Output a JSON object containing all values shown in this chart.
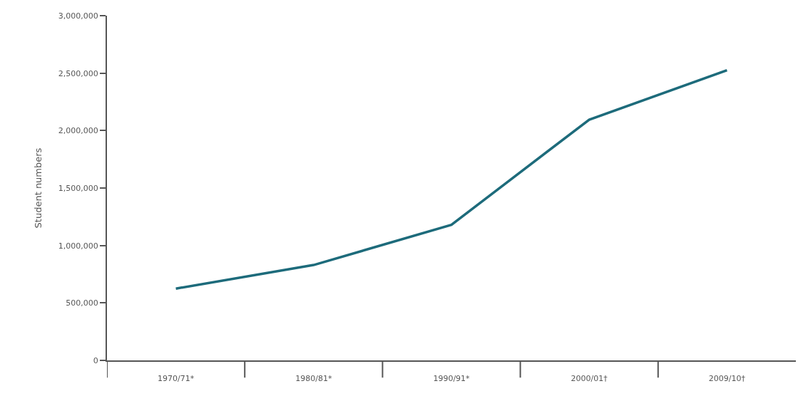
{
  "chart_data": {
    "type": "line",
    "ylabel": "Student numbers",
    "categories": [
      "1970/71*",
      "1980/81*",
      "1990/91*",
      "2000/01†",
      "2009/10†"
    ],
    "series": [
      {
        "color": "#1d6b7b",
        "values": [
          625000,
          830000,
          1180000,
          2095000,
          2525000
        ]
      }
    ],
    "ylim": [
      0,
      3000000
    ],
    "yticks": [
      {
        "value": 0,
        "label": "0"
      },
      {
        "value": 500000,
        "label": "500,000"
      },
      {
        "value": 1000000,
        "label": "1,000,000"
      },
      {
        "value": 1500000,
        "label": "1,500,000"
      },
      {
        "value": 2000000,
        "label": "2,000,000"
      },
      {
        "value": 2500000,
        "label": "2,500,000"
      },
      {
        "value": 3000000,
        "label": "3,000,000"
      }
    ],
    "marker": "none",
    "line_style": "solid"
  }
}
